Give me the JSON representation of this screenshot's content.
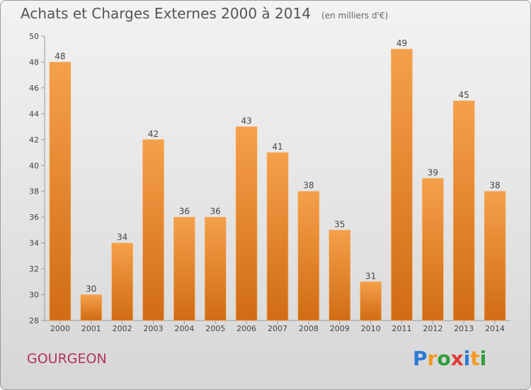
{
  "title": "Achats et Charges Externes 2000 à 2014",
  "subtitle": "(en milliers d'€)",
  "location": "GOURGEON",
  "logo": {
    "text": "Proxiti",
    "letters": [
      "P",
      "r",
      "o",
      "x",
      "i",
      "t",
      "i"
    ],
    "colors": [
      "#2b7bd4",
      "#f39a1e",
      "#2e9e3a",
      "#e03a3a",
      "#2b7bd4",
      "#f39a1e",
      "#2e9e3a"
    ]
  },
  "colors": {
    "bar_top": "#f5a04a",
    "bar_bottom": "#d06c14",
    "title": "#555555",
    "location": "#b4325a"
  },
  "chart_data": {
    "type": "bar",
    "title": "Achats et Charges Externes 2000 à 2014",
    "categories": [
      "2000",
      "2001",
      "2002",
      "2003",
      "2004",
      "2005",
      "2006",
      "2007",
      "2008",
      "2009",
      "2010",
      "2011",
      "2012",
      "2013",
      "2014"
    ],
    "values": [
      48,
      30,
      34,
      42,
      36,
      36,
      43,
      41,
      38,
      35,
      31,
      49,
      39,
      45,
      38
    ],
    "ylim": [
      28,
      50
    ],
    "yticks": [
      28,
      30,
      32,
      34,
      36,
      38,
      40,
      42,
      44,
      46,
      48,
      50
    ],
    "xlabel": "",
    "ylabel": "",
    "grid": false,
    "data_labels": true
  }
}
